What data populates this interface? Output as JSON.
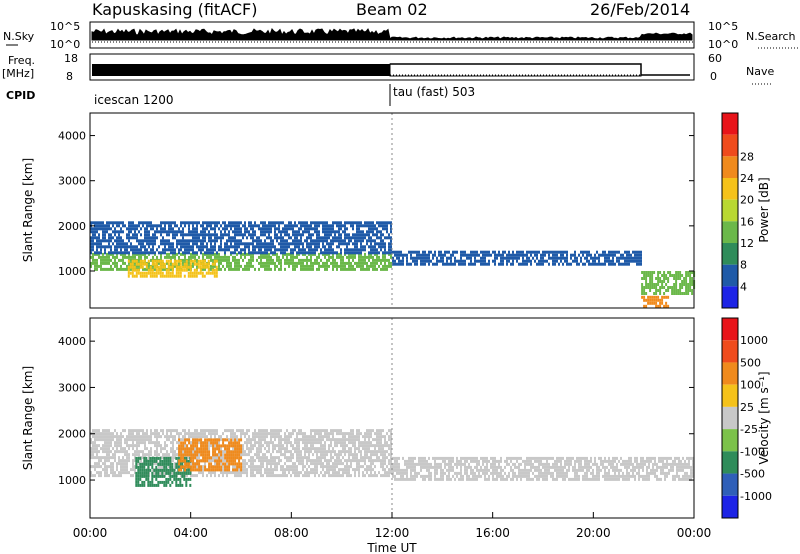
{
  "header": {
    "station": "Kapuskasing (fitACF)",
    "beam": "Beam 02",
    "date": "26/Feb/2014"
  },
  "strips": {
    "nsky_label": "N.Sky",
    "nsky_tick_top": "10^5",
    "nsky_tick_bottom": "10^0",
    "nsearch_label": "N.Search",
    "nsearch_tick_top": "10^5",
    "nsearch_tick_bottom": "10^0",
    "freq_label": "Freq.",
    "freq_unit": "[MHz]",
    "freq_tick_top": "18",
    "freq_tick_bottom": "8",
    "nave_label": "Nave",
    "nave_tick_top": "60",
    "nave_tick_bottom": "0",
    "cpid_label": "CPID",
    "cpid_segments": [
      "icescan 1200",
      "tau (fast) 503"
    ]
  },
  "chart_data": [
    {
      "type": "heatmap",
      "name": "power",
      "ylabel": "Slant Range [km]",
      "y_ticks": [
        "1000",
        "2000",
        "3000",
        "4000"
      ],
      "ylim": [
        180,
        4500
      ],
      "xlim": [
        0,
        24
      ],
      "colorbar_label": "Power [dB]",
      "colorbar_ticks": [
        "4",
        "8",
        "12",
        "16",
        "20",
        "24",
        "28"
      ],
      "colorbar_colors": [
        "#1d24e6",
        "#1f5aa8",
        "#2f8c5a",
        "#6bb84a",
        "#b9d832",
        "#f5c21a",
        "#f08a1c",
        "#ef4b1c",
        "#e8141a"
      ],
      "regions": [
        {
          "t": [
            0.0,
            12.0
          ],
          "r": [
            1050,
            1400
          ],
          "value": "12"
        },
        {
          "t": [
            0.0,
            12.0
          ],
          "r": [
            1400,
            2100
          ],
          "value": "6"
        },
        {
          "t": [
            1.5,
            5.0
          ],
          "r": [
            900,
            1250
          ],
          "value": "20"
        },
        {
          "t": [
            12.0,
            21.9
          ],
          "r": [
            1150,
            1450
          ],
          "value": "4"
        },
        {
          "t": [
            21.9,
            24.0
          ],
          "r": [
            500,
            1000
          ],
          "value": "12"
        },
        {
          "t": [
            21.9,
            23.0
          ],
          "r": [
            250,
            450
          ],
          "value": "26"
        }
      ]
    },
    {
      "type": "heatmap",
      "name": "velocity",
      "ylabel": "Slant Range [km]",
      "y_ticks": [
        "1000",
        "2000",
        "3000",
        "4000"
      ],
      "ylim": [
        180,
        4500
      ],
      "xlim": [
        0,
        24
      ],
      "xlabel": "Time UT",
      "x_ticks": [
        "00:00",
        "04:00",
        "08:00",
        "12:00",
        "16:00",
        "20:00",
        "00:00"
      ],
      "colorbar_label": "Velocity [m s⁻¹]",
      "colorbar_ticks": [
        "1000",
        "500",
        "100",
        "25",
        "-25",
        "-100",
        "-500",
        "-1000"
      ],
      "colorbar_colors": [
        "#1d24e6",
        "#2f5fb8",
        "#2f8c5a",
        "#7cc24a",
        "#c8c8c8",
        "#f5c21a",
        "#f08a1c",
        "#ef4b1c",
        "#e8141a"
      ],
      "regions": [
        {
          "t": [
            0.0,
            12.0
          ],
          "r": [
            1100,
            2100
          ],
          "value": "0"
        },
        {
          "t": [
            1.8,
            4.0
          ],
          "r": [
            900,
            1500
          ],
          "value": "-300"
        },
        {
          "t": [
            3.5,
            6.0
          ],
          "r": [
            1200,
            1900
          ],
          "value": "150"
        },
        {
          "t": [
            12.0,
            24.0
          ],
          "r": [
            1000,
            1500
          ],
          "value": "0"
        }
      ]
    }
  ]
}
